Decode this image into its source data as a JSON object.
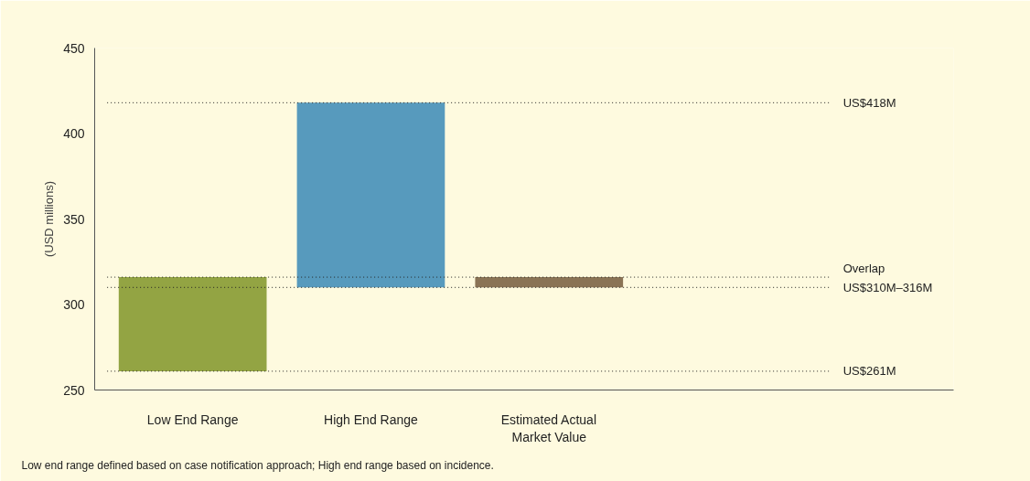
{
  "chart_data": {
    "type": "bar",
    "categories": [
      "Low End Range",
      "High End Range",
      "Estimated Actual\nMarket Value"
    ],
    "values": [
      55,
      108,
      6
    ],
    "base": [
      261,
      310,
      310
    ],
    "colors": [
      "#93a443",
      "#579abd",
      "#8a7355"
    ],
    "ylabel": "(USD millions)",
    "ylim": [
      250,
      450
    ],
    "yticks": [
      250,
      300,
      350,
      400,
      450
    ],
    "grid": false,
    "ref_lines": [
      {
        "axis": "y",
        "value": 418,
        "label": "US$418M",
        "line_style": "dotted",
        "color": "#222222"
      },
      {
        "axis": "y",
        "value": 316,
        "label": "Overlap",
        "line_style": "dotted",
        "color": "#222222"
      },
      {
        "axis": "y",
        "value": 310,
        "label": "US$310M–316M",
        "line_style": "dotted",
        "color": "#222222"
      },
      {
        "axis": "y",
        "value": 261,
        "label": "US$261M",
        "line_style": "dotted",
        "color": "#222222"
      }
    ],
    "annotations": [
      "Low end range defined based on case notification approach; High end range based on incidence."
    ]
  }
}
